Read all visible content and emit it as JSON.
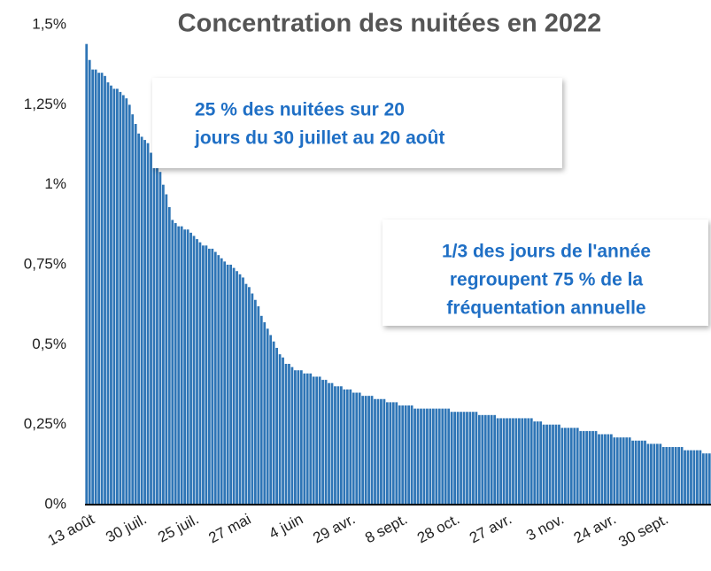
{
  "chart_data": {
    "type": "bar",
    "title": "Concentration des nuitées en 2022",
    "color": "#2e75b6",
    "ylim": [
      0,
      1.5
    ],
    "yticks": [
      {
        "value": 0,
        "label": "0%"
      },
      {
        "value": 0.25,
        "label": "0,25%"
      },
      {
        "value": 0.5,
        "label": "0,5%"
      },
      {
        "value": 0.75,
        "label": "0,75%"
      },
      {
        "value": 1,
        "label": "1%"
      },
      {
        "value": 1.25,
        "label": "1,25%"
      },
      {
        "value": 1.5,
        "label": "1,5%"
      }
    ],
    "annotations": [
      {
        "lines": [
          "25 % des nuitées sur 20",
          "jours du 30 juillet au 20 août"
        ]
      },
      {
        "lines": [
          "1/3 des jours de l'année",
          "regroupent 75 % de la",
          "fréquentation annuelle"
        ]
      }
    ],
    "categories": [
      "13 août",
      null,
      null,
      null,
      null,
      null,
      null,
      null,
      null,
      null,
      null,
      null,
      null,
      null,
      null,
      null,
      null,
      "30 juil.",
      null,
      null,
      null,
      null,
      null,
      null,
      null,
      null,
      null,
      null,
      null,
      null,
      null,
      null,
      null,
      null,
      "25 juil.",
      null,
      null,
      null,
      null,
      null,
      null,
      null,
      null,
      null,
      null,
      null,
      null,
      null,
      null,
      null,
      null,
      "27 mai",
      null,
      null,
      null,
      null,
      null,
      null,
      null,
      null,
      null,
      null,
      null,
      null,
      null,
      null,
      null,
      null,
      "4 juin",
      null,
      null,
      null,
      null,
      null,
      null,
      null,
      null,
      null,
      null,
      null,
      null,
      null,
      null,
      null,
      null,
      "29 avr.",
      null,
      null,
      null,
      null,
      null,
      null,
      null,
      null,
      null,
      null,
      null,
      null,
      null,
      null,
      null,
      null,
      "8 sept.",
      null,
      null,
      null,
      null,
      null,
      null,
      null,
      null,
      null,
      null,
      null,
      null,
      null,
      null,
      null,
      null,
      "28 oct.",
      null,
      null,
      null,
      null,
      null,
      null,
      null,
      null,
      null,
      null,
      null,
      null,
      null,
      null,
      null,
      null,
      "27 avr.",
      null,
      null,
      null,
      null,
      null,
      null,
      null,
      null,
      null,
      null,
      null,
      null,
      null,
      null,
      null,
      null,
      "3 nov.",
      null,
      null,
      null,
      null,
      null,
      null,
      null,
      null,
      null,
      null,
      null,
      null,
      null,
      null,
      null,
      null,
      "24 avr.",
      null,
      null,
      null,
      null,
      null,
      null,
      null,
      null,
      null,
      null,
      null,
      null,
      null,
      null,
      null,
      null,
      "30 sept.",
      null,
      null,
      null,
      null,
      null,
      null,
      null,
      null,
      null,
      null,
      null,
      null,
      null,
      null,
      null,
      null
    ],
    "values": [
      1.44,
      1.39,
      1.36,
      1.36,
      1.35,
      1.35,
      1.34,
      1.32,
      1.31,
      1.3,
      1.3,
      1.29,
      1.28,
      1.27,
      1.25,
      1.22,
      1.19,
      1.16,
      1.15,
      1.14,
      1.13,
      1.1,
      1.08,
      1.06,
      1.04,
      1.0,
      0.97,
      0.93,
      0.89,
      0.88,
      0.87,
      0.87,
      0.86,
      0.86,
      0.85,
      0.84,
      0.83,
      0.82,
      0.81,
      0.81,
      0.8,
      0.8,
      0.79,
      0.78,
      0.77,
      0.76,
      0.75,
      0.75,
      0.74,
      0.73,
      0.72,
      0.71,
      0.69,
      0.68,
      0.66,
      0.64,
      0.62,
      0.59,
      0.57,
      0.55,
      0.53,
      0.51,
      0.49,
      0.47,
      0.46,
      0.44,
      0.44,
      0.43,
      0.42,
      0.42,
      0.42,
      0.41,
      0.41,
      0.41,
      0.4,
      0.4,
      0.4,
      0.39,
      0.39,
      0.38,
      0.38,
      0.37,
      0.37,
      0.37,
      0.36,
      0.36,
      0.36,
      0.35,
      0.35,
      0.35,
      0.34,
      0.34,
      0.34,
      0.34,
      0.33,
      0.33,
      0.33,
      0.33,
      0.32,
      0.32,
      0.32,
      0.32,
      0.31,
      0.31,
      0.31,
      0.31,
      0.31,
      0.3,
      0.3,
      0.3,
      0.3,
      0.3,
      0.3,
      0.3,
      0.3,
      0.3,
      0.3,
      0.3,
      0.3,
      0.29,
      0.29,
      0.29,
      0.29,
      0.29,
      0.29,
      0.29,
      0.29,
      0.29,
      0.28,
      0.28,
      0.28,
      0.28,
      0.28,
      0.28,
      0.27,
      0.27,
      0.27,
      0.27,
      0.27,
      0.27,
      0.27,
      0.27,
      0.27,
      0.27,
      0.27,
      0.27,
      0.26,
      0.26,
      0.26,
      0.25,
      0.25,
      0.25,
      0.25,
      0.25,
      0.25,
      0.24,
      0.24,
      0.24,
      0.24,
      0.24,
      0.24,
      0.23,
      0.23,
      0.23,
      0.23,
      0.23,
      0.23,
      0.22,
      0.22,
      0.22,
      0.22,
      0.22,
      0.21,
      0.21,
      0.21,
      0.21,
      0.21,
      0.21,
      0.2,
      0.2,
      0.2,
      0.2,
      0.2,
      0.19,
      0.19,
      0.19,
      0.19,
      0.19,
      0.18,
      0.18,
      0.18,
      0.18,
      0.18,
      0.18,
      0.18,
      0.17,
      0.17,
      0.17,
      0.17,
      0.17,
      0.17,
      0.16,
      0.16,
      0.16
    ]
  }
}
